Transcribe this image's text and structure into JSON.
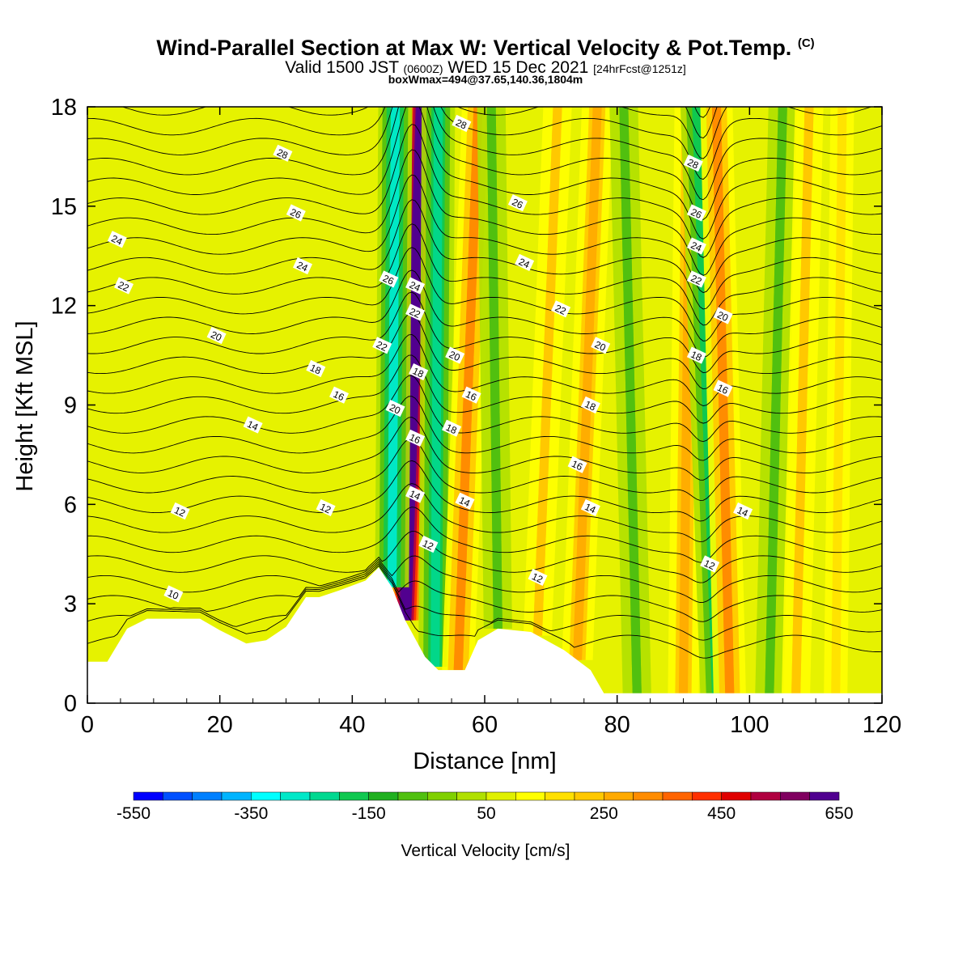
{
  "title": {
    "main": "Wind-Parallel Section at Max W: Vertical Velocity & Pot.Temp.",
    "copyright": "(C)",
    "valid_pre": "Valid 1500 JST",
    "valid_z": "(0600Z)",
    "valid_date": "WED 15 Dec 2021",
    "forecast": "[24hrFcst@1251z]",
    "box": "boxWmax=494@37.65,140.36,1804m"
  },
  "chart_data": {
    "type": "heatmap",
    "xlabel": "Distance [nm]",
    "ylabel": "Height [Kft MSL]",
    "xlim": [
      0,
      120
    ],
    "ylim": [
      0,
      18
    ],
    "x_ticks": [
      0,
      20,
      40,
      60,
      80,
      100,
      120
    ],
    "y_ticks": [
      0,
      3,
      6,
      9,
      12,
      15,
      18
    ],
    "colorbar": {
      "label": "Vertical Velocity [cm/s]",
      "min": -550,
      "max": 650,
      "step": 50,
      "tick_labels": [
        "-550",
        "-350",
        "-150",
        "50",
        "250",
        "450",
        "650"
      ],
      "colors": [
        "#0000ff",
        "#0050ff",
        "#0080ff",
        "#00b4ff",
        "#00ffff",
        "#00e8c8",
        "#00d890",
        "#10c850",
        "#20b020",
        "#50c010",
        "#80d000",
        "#b0e000",
        "#e0f000",
        "#ffff00",
        "#ffe000",
        "#ffc800",
        "#ffaa00",
        "#ff8c00",
        "#ff6400",
        "#ff3000",
        "#e00000",
        "#b00040",
        "#800060",
        "#500090"
      ]
    },
    "terrain": [
      [
        0,
        1.25
      ],
      [
        3,
        1.25
      ],
      [
        6,
        2.25
      ],
      [
        9,
        2.55
      ],
      [
        17,
        2.55
      ],
      [
        20,
        2.2
      ],
      [
        24,
        1.8
      ],
      [
        27,
        1.9
      ],
      [
        30,
        2.3
      ],
      [
        33,
        3.2
      ],
      [
        35,
        3.2
      ],
      [
        38,
        3.4
      ],
      [
        42,
        3.7
      ],
      [
        44,
        4.1
      ],
      [
        46,
        3.5
      ],
      [
        48,
        2.5
      ],
      [
        51,
        1.4
      ],
      [
        53,
        1.0
      ],
      [
        57,
        1.0
      ],
      [
        59,
        1.9
      ],
      [
        62,
        2.25
      ],
      [
        67,
        2.15
      ],
      [
        72,
        1.6
      ],
      [
        76,
        1.0
      ],
      [
        78,
        0.3
      ],
      [
        120,
        0.3
      ]
    ],
    "w_features": [
      {
        "x_bottom": 48,
        "x_top": 50.5,
        "w": 620
      },
      {
        "x_bottom": 46,
        "x_top": 46.5,
        "w": -350
      },
      {
        "x_bottom": 52.5,
        "x_top": 53,
        "w": -300
      },
      {
        "x_bottom": 56,
        "x_top": 59,
        "w": 250
      },
      {
        "x_bottom": 62,
        "x_top": 61,
        "w": -150
      },
      {
        "x_bottom": 68,
        "x_top": 71,
        "w": 150
      },
      {
        "x_bottom": 74,
        "x_top": 77,
        "w": 200
      },
      {
        "x_bottom": 83,
        "x_top": 81,
        "w": -150
      },
      {
        "x_bottom": 90,
        "x_top": 91,
        "w": 200
      },
      {
        "x_bottom": 95,
        "x_top": 92,
        "w": -250
      },
      {
        "x_bottom": 97,
        "x_top": 95,
        "w": 250
      },
      {
        "x_bottom": 103,
        "x_top": 105,
        "w": -150
      },
      {
        "x_bottom": 107,
        "x_top": 109,
        "w": 150
      },
      {
        "x_bottom": 113,
        "x_top": 114,
        "w": 100
      }
    ],
    "theta_contours": {
      "levels": [
        10,
        12,
        14,
        16,
        18,
        20,
        22,
        24,
        26,
        28
      ],
      "labels": [
        {
          "text": "10",
          "x": 13,
          "y": 3.3
        },
        {
          "text": "12",
          "x": 14,
          "y": 5.8
        },
        {
          "text": "12",
          "x": 36,
          "y": 5.9
        },
        {
          "text": "12",
          "x": 51.5,
          "y": 4.8
        },
        {
          "text": "12",
          "x": 68,
          "y": 3.8
        },
        {
          "text": "12",
          "x": 94,
          "y": 4.2
        },
        {
          "text": "14",
          "x": 25,
          "y": 8.4
        },
        {
          "text": "14",
          "x": 49.5,
          "y": 6.3
        },
        {
          "text": "14",
          "x": 57,
          "y": 6.1
        },
        {
          "text": "14",
          "x": 76,
          "y": 5.9
        },
        {
          "text": "14",
          "x": 99,
          "y": 5.8
        },
        {
          "text": "16",
          "x": 38,
          "y": 9.3
        },
        {
          "text": "16",
          "x": 49.5,
          "y": 8.0
        },
        {
          "text": "16",
          "x": 58,
          "y": 9.3
        },
        {
          "text": "16",
          "x": 74,
          "y": 7.2
        },
        {
          "text": "16",
          "x": 96,
          "y": 9.5
        },
        {
          "text": "18",
          "x": 34.5,
          "y": 10.1
        },
        {
          "text": "18",
          "x": 50,
          "y": 10.0
        },
        {
          "text": "18",
          "x": 55,
          "y": 8.3
        },
        {
          "text": "18",
          "x": 76,
          "y": 9.0
        },
        {
          "text": "18",
          "x": 92,
          "y": 10.5
        },
        {
          "text": "20",
          "x": 19.5,
          "y": 11.1
        },
        {
          "text": "20",
          "x": 46.5,
          "y": 8.9
        },
        {
          "text": "20",
          "x": 55.5,
          "y": 10.5
        },
        {
          "text": "20",
          "x": 77.5,
          "y": 10.8
        },
        {
          "text": "20",
          "x": 96,
          "y": 11.7
        },
        {
          "text": "22",
          "x": 5.5,
          "y": 12.6
        },
        {
          "text": "22",
          "x": 44.5,
          "y": 10.8
        },
        {
          "text": "22",
          "x": 49.5,
          "y": 11.8
        },
        {
          "text": "22",
          "x": 71.5,
          "y": 11.9
        },
        {
          "text": "22",
          "x": 92,
          "y": 12.8
        },
        {
          "text": "24",
          "x": 4.5,
          "y": 14.0
        },
        {
          "text": "24",
          "x": 32.5,
          "y": 13.2
        },
        {
          "text": "24",
          "x": 49.5,
          "y": 12.6
        },
        {
          "text": "24",
          "x": 66,
          "y": 13.3
        },
        {
          "text": "24",
          "x": 92,
          "y": 13.8
        },
        {
          "text": "26",
          "x": 31.5,
          "y": 14.8
        },
        {
          "text": "26",
          "x": 45.5,
          "y": 12.8
        },
        {
          "text": "26",
          "x": 65,
          "y": 15.1
        },
        {
          "text": "26",
          "x": 92,
          "y": 14.8
        },
        {
          "text": "28",
          "x": 29.5,
          "y": 16.6
        },
        {
          "text": "28",
          "x": 56.5,
          "y": 17.5
        },
        {
          "text": "28",
          "x": 91.5,
          "y": 16.3
        }
      ]
    }
  }
}
